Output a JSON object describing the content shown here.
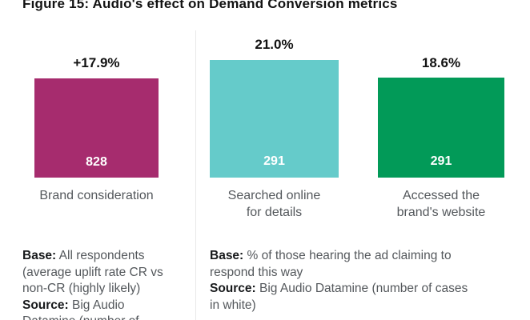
{
  "title": "Figure 15: Audio's effect on Demand Conversion metrics",
  "chart_data": {
    "type": "bar",
    "title": "Figure 15: Audio's effect on Demand Conversion metrics",
    "categories": [
      "Brand consideration",
      "Searched online for details",
      "Accessed the brand's website"
    ],
    "values": [
      17.9,
      21.0,
      18.6
    ],
    "value_labels": [
      "+17.9%",
      "21.0%",
      "18.6%"
    ],
    "case_counts": [
      828,
      291,
      291
    ],
    "bar_colors": [
      "#a62c6e",
      "#65cbca",
      "#029a58"
    ],
    "xlabel": "",
    "ylabel": "",
    "ylim": [
      0,
      21
    ],
    "grid": false,
    "legend": "none",
    "notes": [
      "Base: All respondents (average uplift rate CR vs non-CR (highly likely) Source: Big Audio Datamine (number of",
      "Base: % of those hearing the ad claiming to respond this way Source: Big Audio Datamine (number of cases in white)"
    ]
  },
  "bars": [
    {
      "percent": "+17.9%",
      "count": "828",
      "label": "Brand consideration",
      "color": "#a62c6e"
    },
    {
      "percent": "21.0%",
      "count": "291",
      "label": "Searched online\nfor details",
      "color": "#65cbca"
    },
    {
      "percent": "18.6%",
      "count": "291",
      "label": "Accessed the\nbrand's website",
      "color": "#029a58"
    }
  ],
  "notes": {
    "left": {
      "lines": [
        {
          "bold": "Base:",
          "text": " All respondents"
        },
        {
          "bold": "",
          "text": "(average uplift rate CR vs"
        },
        {
          "bold": "",
          "text": "non-CR (highly likely)"
        },
        {
          "bold": "Source:",
          "text": " Big Audio"
        },
        {
          "bold": "",
          "text": "Datamine (number of"
        }
      ]
    },
    "right": {
      "lines": [
        {
          "bold": "Base:",
          "text": " % of those hearing the ad claiming to"
        },
        {
          "bold": "",
          "text": "respond this way"
        },
        {
          "bold": "Source:",
          "text": " Big Audio Datamine (number of cases"
        },
        {
          "bold": "",
          "text": "in white)"
        }
      ]
    }
  }
}
